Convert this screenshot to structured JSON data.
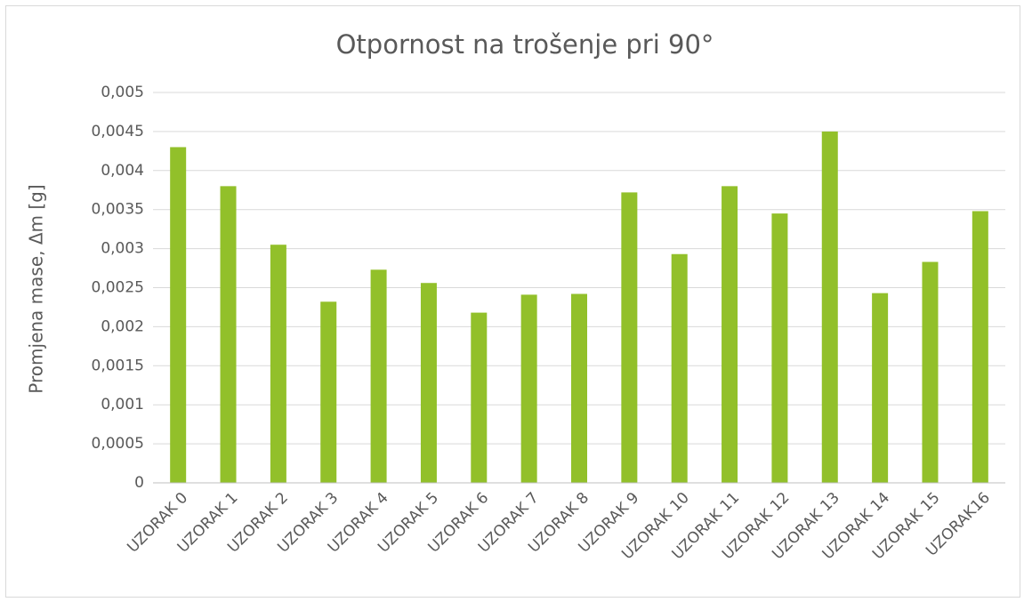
{
  "chart_data": {
    "type": "bar",
    "title": "Otpornost na trošenje pri 90°",
    "y_label": "Promjena mase, Δm [g]",
    "categories": [
      "UZORAK 0",
      "UZORAK 1",
      "UZORAK 2",
      "UZORAK 3",
      "UZORAK 4",
      "UZORAK 5",
      "UZORAK 6",
      "UZORAK 7",
      "UZORAK 8",
      "UZORAK 9",
      "UZORAK 10",
      "UZORAK 11",
      "UZORAK 12",
      "UZORAK 13",
      "UZORAK 14",
      "UZORAK 15",
      "UZORAK16"
    ],
    "values": [
      0.0043,
      0.0038,
      0.00305,
      0.00232,
      0.00273,
      0.00256,
      0.00218,
      0.00241,
      0.00242,
      0.00372,
      0.00293,
      0.0038,
      0.00345,
      0.0045,
      0.00243,
      0.00283,
      0.00348
    ],
    "color": "#92c02a",
    "ylim": [
      0,
      0.005
    ],
    "yticks": [
      0,
      {
        "value": 0.0005,
        "label": "0,0005"
      },
      {
        "value": 0.001,
        "label": "0,001"
      },
      {
        "value": 0.0015,
        "label": "0,0015"
      },
      {
        "value": 0.002,
        "label": "0,002"
      },
      {
        "value": 0.0025,
        "label": "0,0025"
      },
      {
        "value": 0.003,
        "label": "0,003"
      },
      {
        "value": 0.0035,
        "label": "0,0035"
      },
      {
        "value": 0.004,
        "label": "0,004"
      },
      {
        "value": 0.0045,
        "label": "0,0045"
      },
      {
        "value": 0.005,
        "label": "0,005"
      }
    ],
    "grid": true
  }
}
